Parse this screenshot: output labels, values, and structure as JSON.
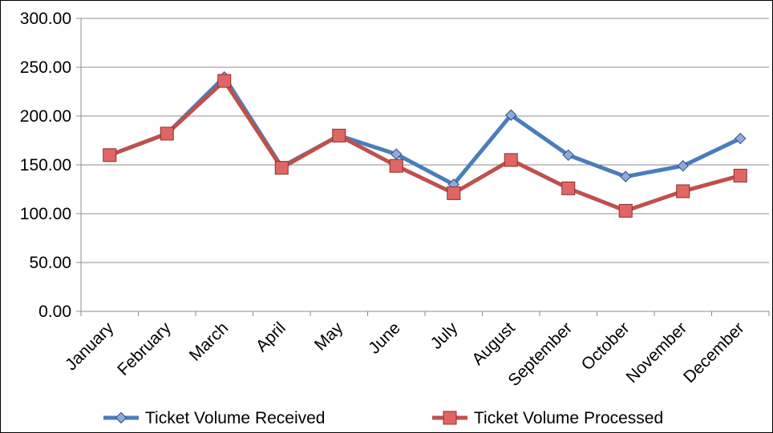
{
  "chart_data": {
    "type": "line",
    "title": "",
    "xlabel": "",
    "ylabel": "",
    "categories": [
      "January",
      "February",
      "March",
      "April",
      "May",
      "June",
      "July",
      "August",
      "September",
      "October",
      "November",
      "December"
    ],
    "y_ticks": [
      "0.00",
      "50.00",
      "100.00",
      "150.00",
      "200.00",
      "250.00",
      "300.00"
    ],
    "ylim": [
      0,
      300
    ],
    "grid": true,
    "legend_position": "bottom",
    "series": [
      {
        "name": "Ticket Volume Received",
        "marker": "diamond",
        "line_color": "#4a7ebb",
        "marker_fill": "#8eaadb",
        "marker_stroke": "#2c4a86",
        "values": [
          160,
          182,
          240,
          148,
          180,
          161,
          130,
          201,
          160,
          138,
          149,
          177
        ]
      },
      {
        "name": "Ticket Volume Processed",
        "marker": "square",
        "line_color": "#c0504d",
        "marker_fill": "#e06666",
        "marker_stroke": "#8b2e2b",
        "values": [
          160,
          182,
          236,
          147,
          180,
          149,
          121,
          155,
          126,
          103,
          123,
          139
        ]
      }
    ]
  }
}
